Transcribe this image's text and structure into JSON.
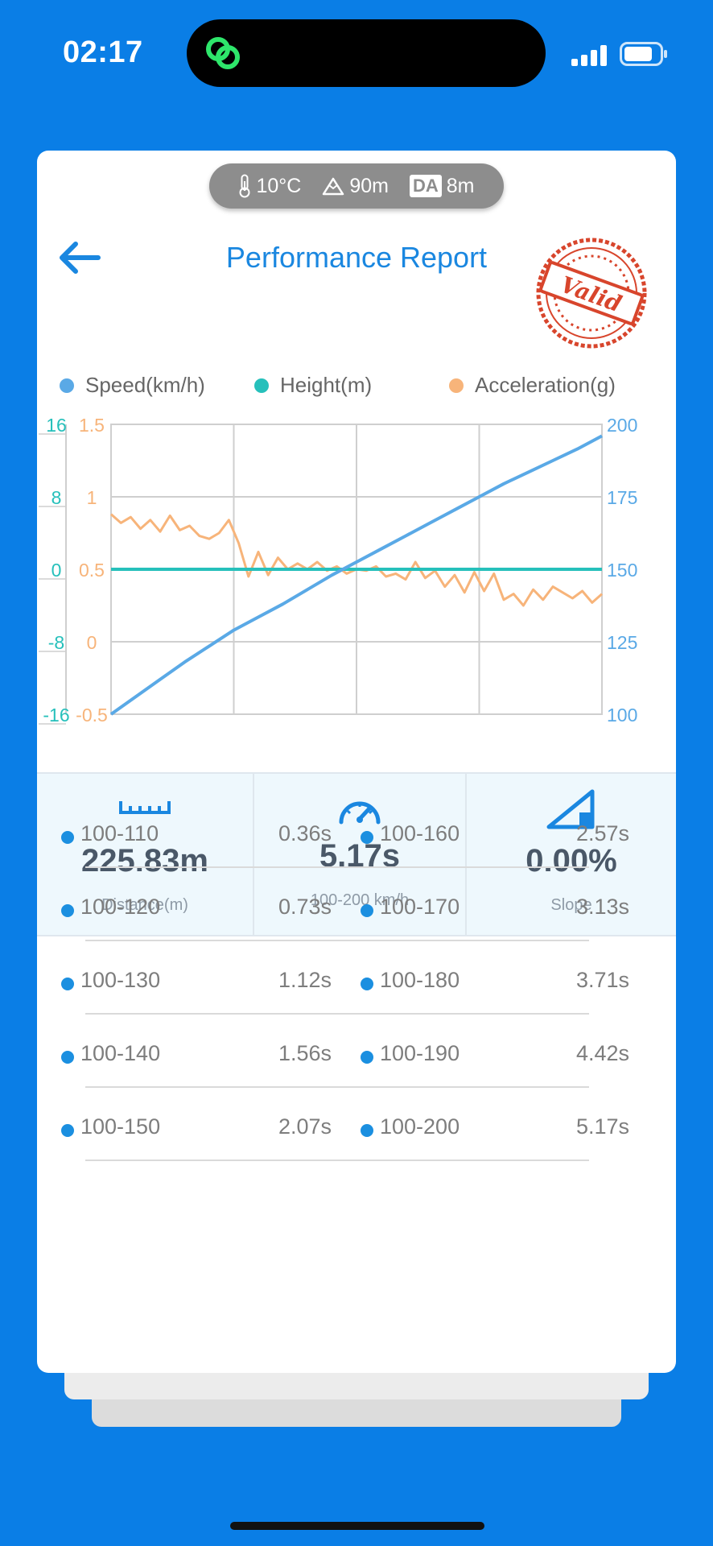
{
  "status_bar": {
    "time": "02:17"
  },
  "conditions": {
    "temperature": "10°C",
    "altitude": "90m",
    "da_label": "DA",
    "density_altitude": "8m"
  },
  "header": {
    "title": "Performance Report",
    "stamp_text": "Valid"
  },
  "colors": {
    "speed": "#5aa9e6",
    "height": "#26c0bb",
    "acceleration": "#f7b47a",
    "accent": "#1a87e0",
    "background": "#0a7ee6"
  },
  "legend": {
    "speed": "Speed(km/h)",
    "height": "Height(m)",
    "acceleration": "Acceleration(g)"
  },
  "chart_data": {
    "type": "line",
    "height_axis_ticks": [
      "16",
      "8",
      "0",
      "-8",
      "-16"
    ],
    "acceleration_axis_ticks": [
      "1.5",
      "1",
      "0.5",
      "0",
      "-0.5"
    ],
    "speed_axis_ticks": [
      "200",
      "175",
      "150",
      "125",
      "100"
    ],
    "height_range": [
      -16,
      16
    ],
    "acceleration_range": [
      -0.5,
      1.5
    ],
    "speed_range": [
      100,
      200
    ],
    "grid": true,
    "series": [
      {
        "name": "Speed(km/h)",
        "axis": "right",
        "x": [
          0,
          0.05,
          0.1,
          0.15,
          0.2,
          0.25,
          0.3,
          0.35,
          0.4,
          0.45,
          0.5,
          0.55,
          0.6,
          0.65,
          0.7,
          0.75,
          0.8,
          0.85,
          0.9,
          0.95,
          1
        ],
        "values": [
          100,
          106,
          112,
          118,
          123.5,
          129,
          133.5,
          138,
          143,
          148,
          152.5,
          157,
          161.5,
          166,
          170.5,
          175,
          179.5,
          183.5,
          187.5,
          191.5,
          196
        ]
      },
      {
        "name": "Height(m)",
        "axis": "left",
        "x": [
          0,
          0.1,
          0.2,
          0.3,
          0.4,
          0.5,
          0.6,
          0.7,
          0.8,
          0.9,
          1
        ],
        "values": [
          0,
          0,
          0,
          0,
          0,
          0,
          0,
          0,
          0,
          0,
          0
        ]
      },
      {
        "name": "Acceleration(g)",
        "axis": "middle",
        "x": [
          0,
          0.02,
          0.04,
          0.06,
          0.08,
          0.1,
          0.12,
          0.14,
          0.16,
          0.18,
          0.2,
          0.22,
          0.24,
          0.26,
          0.28,
          0.3,
          0.32,
          0.34,
          0.36,
          0.38,
          0.4,
          0.42,
          0.44,
          0.46,
          0.48,
          0.5,
          0.52,
          0.54,
          0.56,
          0.58,
          0.6,
          0.62,
          0.64,
          0.66,
          0.68,
          0.7,
          0.72,
          0.74,
          0.76,
          0.78,
          0.8,
          0.82,
          0.84,
          0.86,
          0.88,
          0.9,
          0.92,
          0.94,
          0.96,
          0.98,
          1
        ],
        "values": [
          0.88,
          0.82,
          0.86,
          0.78,
          0.84,
          0.76,
          0.87,
          0.77,
          0.8,
          0.73,
          0.71,
          0.75,
          0.84,
          0.68,
          0.45,
          0.62,
          0.46,
          0.58,
          0.5,
          0.54,
          0.5,
          0.55,
          0.49,
          0.52,
          0.47,
          0.5,
          0.49,
          0.52,
          0.45,
          0.47,
          0.43,
          0.55,
          0.44,
          0.49,
          0.38,
          0.46,
          0.34,
          0.48,
          0.35,
          0.47,
          0.29,
          0.33,
          0.25,
          0.36,
          0.29,
          0.38,
          0.34,
          0.3,
          0.35,
          0.27,
          0.33
        ]
      }
    ]
  },
  "stats": [
    {
      "icon": "ruler-icon",
      "value": "225.83m",
      "label": "Distance(m)"
    },
    {
      "icon": "speedometer-icon",
      "value": "5.17s",
      "label": "100-200 km/h"
    },
    {
      "icon": "slope-icon",
      "value": "0.00%",
      "label": "Slope"
    }
  ],
  "splits": [
    {
      "range": "100-110",
      "time": "0.36s"
    },
    {
      "range": "100-120",
      "time": "0.73s"
    },
    {
      "range": "100-130",
      "time": "1.12s"
    },
    {
      "range": "100-140",
      "time": "1.56s"
    },
    {
      "range": "100-150",
      "time": "2.07s"
    },
    {
      "range": "100-160",
      "time": "2.57s"
    },
    {
      "range": "100-170",
      "time": "3.13s"
    },
    {
      "range": "100-180",
      "time": "3.71s"
    },
    {
      "range": "100-190",
      "time": "4.42s"
    },
    {
      "range": "100-200",
      "time": "5.17s"
    }
  ]
}
